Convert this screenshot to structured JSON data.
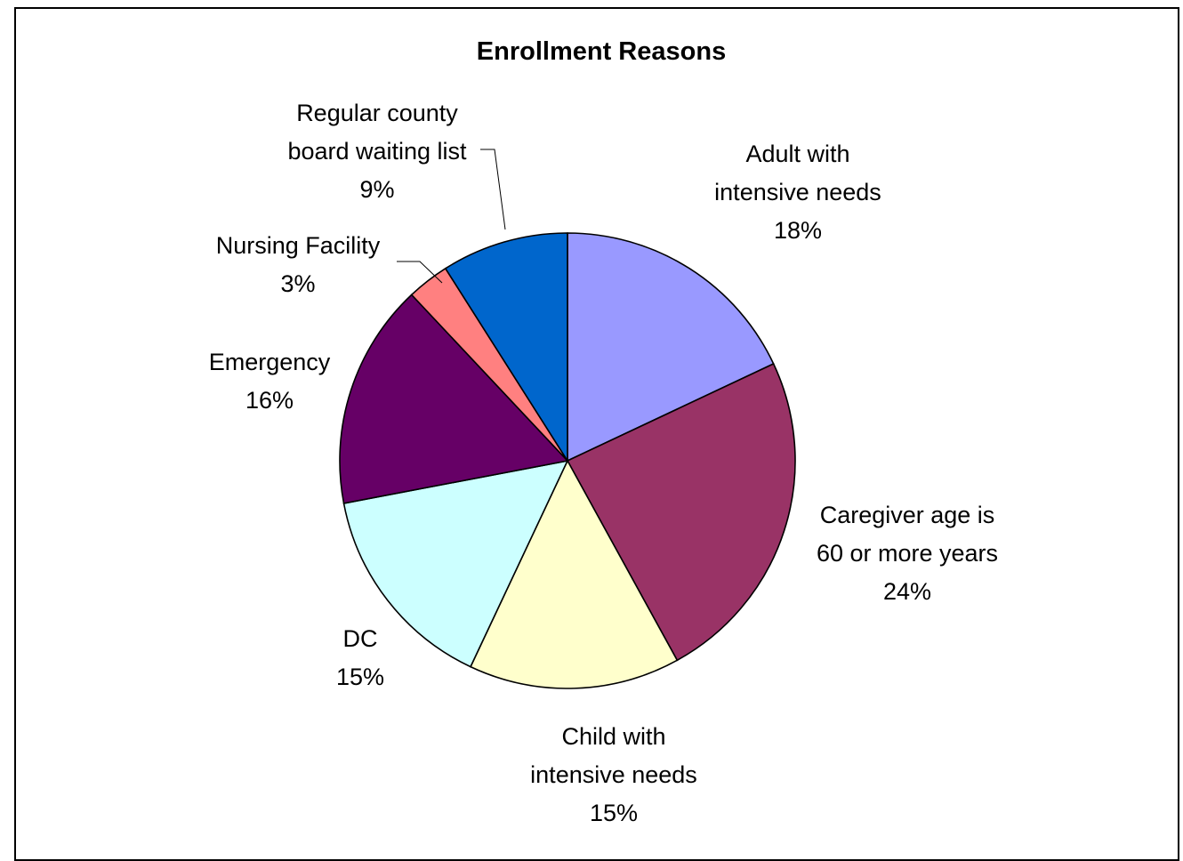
{
  "chart_data": {
    "type": "pie",
    "title": "Enrollment Reasons",
    "slices": [
      {
        "label": [
          "Adult with",
          "intensive needs"
        ],
        "percent_label": "18%",
        "value": 18,
        "color": "#9999FF"
      },
      {
        "label": [
          "Caregiver age is",
          "60 or more years"
        ],
        "percent_label": "24%",
        "value": 24,
        "color": "#993366"
      },
      {
        "label": [
          "Child with",
          "intensive needs"
        ],
        "percent_label": "15%",
        "value": 15,
        "color": "#FFFFCC"
      },
      {
        "label": [
          "DC"
        ],
        "percent_label": "15%",
        "value": 15,
        "color": "#CCFFFF"
      },
      {
        "label": [
          "Emergency"
        ],
        "percent_label": "16%",
        "value": 16,
        "color": "#660066"
      },
      {
        "label": [
          "Nursing Facility"
        ],
        "percent_label": "3%",
        "value": 3,
        "color": "#FF8080"
      },
      {
        "label": [
          "Regular county",
          "board waiting list"
        ],
        "percent_label": "9%",
        "value": 9,
        "color": "#0066CC"
      }
    ],
    "start_angle_deg": 0,
    "direction": "clockwise"
  }
}
